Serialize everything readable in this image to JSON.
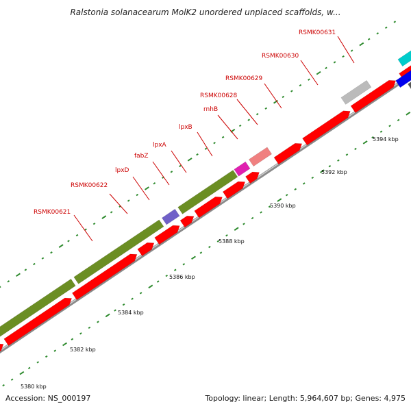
{
  "title": "Ralstonia solanacearum MolK2 unordered unplaced scaffolds, w...",
  "footer": {
    "accession": "Accession: NS_000197",
    "summary": "Topology: linear; Length: 5,964,607 bp; Genes: 4,975"
  },
  "colors": {
    "gene_red": "#ff0000",
    "olive": "#6b8e23",
    "slate_blue": "#7060c8",
    "magenta": "#e020b0",
    "salmon": "#f08080",
    "gray": "#bbbbbb",
    "blue": "#0000ee",
    "cyan": "#00cccc",
    "dark_gray": "#555555",
    "tick_green": "#2d8a2d",
    "label_red": "#cc0000",
    "axis_gray": "#8a8a8a"
  },
  "scale_labels": [
    "5380 kbp",
    "5382 kbp",
    "5384 kbp",
    "5386 kbp",
    "5388 kbp",
    "5390 kbp",
    "5392 kbp",
    "5394 kbp"
  ],
  "gene_labels": [
    "RSMK00621",
    "RSMK00622",
    "lpxD",
    "fabZ",
    "lpxA",
    "lpxB",
    "rnhB",
    "RSMK00628",
    "RSMK00629",
    "RSMK00630",
    "RSMK00631"
  ]
}
